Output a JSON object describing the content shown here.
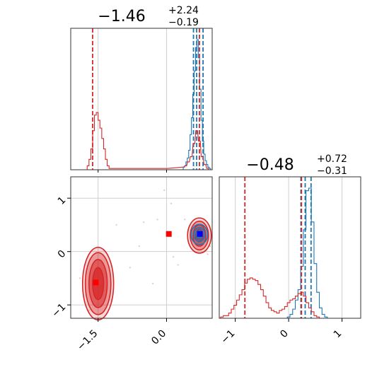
{
  "chart_data": [
    {
      "panel": "top-left",
      "type": "histogram",
      "title": {
        "main": "−1.46",
        "sup": "+2.24",
        "sub": "−0.19"
      },
      "xlim": [
        -2.1,
        1.0
      ],
      "grid": true,
      "series": [
        {
          "color": "#1f77b4",
          "bins": [
            [
              0.35,
              0.0
            ],
            [
              0.38,
              0.02
            ],
            [
              0.41,
              0.03
            ],
            [
              0.44,
              0.06
            ],
            [
              0.47,
              0.09
            ],
            [
              0.5,
              0.15
            ],
            [
              0.53,
              0.27
            ],
            [
              0.56,
              0.4
            ],
            [
              0.59,
              0.58
            ],
            [
              0.62,
              0.76
            ],
            [
              0.65,
              0.94
            ],
            [
              0.68,
              1.0
            ],
            [
              0.71,
              0.86
            ],
            [
              0.74,
              0.62
            ],
            [
              0.77,
              0.38
            ],
            [
              0.8,
              0.22
            ],
            [
              0.83,
              0.12
            ],
            [
              0.86,
              0.07
            ],
            [
              0.89,
              0.04
            ],
            [
              0.92,
              0.02
            ],
            [
              0.95,
              0.01
            ]
          ],
          "quantiles": [
            0.59,
            0.66,
            0.8
          ]
        },
        {
          "color": "#d62728",
          "bins": [
            [
              -1.72,
              0.03
            ],
            [
              -1.68,
              0.08
            ],
            [
              -1.64,
              0.16
            ],
            [
              -1.6,
              0.3
            ],
            [
              -1.56,
              0.42
            ],
            [
              -1.52,
              0.44
            ],
            [
              -1.48,
              0.38
            ],
            [
              -1.44,
              0.32
            ],
            [
              -1.4,
              0.24
            ],
            [
              -1.36,
              0.16
            ],
            [
              -1.32,
              0.08
            ],
            [
              -1.28,
              0.03
            ],
            [
              -1.24,
              0.01
            ],
            [
              -0.04,
              0.01
            ],
            [
              0.0,
              0.01
            ],
            [
              0.36,
              0.02
            ],
            [
              0.42,
              0.03
            ],
            [
              0.48,
              0.06
            ],
            [
              0.54,
              0.1
            ],
            [
              0.6,
              0.2
            ],
            [
              0.66,
              0.3
            ],
            [
              0.72,
              0.22
            ],
            [
              0.78,
              0.1
            ],
            [
              0.84,
              0.04
            ],
            [
              0.9,
              0.01
            ]
          ],
          "quantiles": [
            -1.62,
            0.72
          ]
        }
      ]
    },
    {
      "panel": "bottom-left",
      "type": "contour-scatter",
      "xlim": [
        -2.1,
        1.0
      ],
      "ylim": [
        -1.25,
        1.4
      ],
      "x_ticks": [
        -1.5,
        0.0
      ],
      "x_tick_labels": [
        "−1.5",
        "0.0"
      ],
      "y_ticks": [
        -1,
        0,
        1
      ],
      "y_tick_labels": [
        "−1",
        "0",
        "1"
      ],
      "grid": true,
      "markers": [
        {
          "color": "#ff0000",
          "x": 0.05,
          "y": 0.33
        },
        {
          "color": "#0000ff",
          "x": 0.73,
          "y": 0.33
        },
        {
          "color": "#ff0000",
          "x": -1.55,
          "y": -0.58
        }
      ],
      "contours": [
        {
          "color": "#d62728",
          "cx": -1.5,
          "cy": -0.6,
          "rx": [
            0.12,
            0.2,
            0.28,
            0.34
          ],
          "ry": [
            0.3,
            0.45,
            0.58,
            0.68
          ]
        },
        {
          "color": "#d62728",
          "cx": 0.72,
          "cy": 0.3,
          "rx": [
            0.08,
            0.14,
            0.2,
            0.26
          ],
          "ry": [
            0.12,
            0.2,
            0.27,
            0.33
          ]
        },
        {
          "color": "#1f77b4",
          "cx": 0.72,
          "cy": 0.32,
          "rx": [
            0.06,
            0.12,
            0.18
          ],
          "ry": [
            0.07,
            0.13,
            0.19
          ]
        }
      ]
    },
    {
      "panel": "bottom-right",
      "type": "histogram",
      "title": {
        "main": "−0.48",
        "sup": "+0.72",
        "sub": "−0.31"
      },
      "xlim": [
        -1.3,
        1.35
      ],
      "x_ticks": [
        -1,
        0,
        1
      ],
      "x_tick_labels": [
        "−1",
        "0",
        "1"
      ],
      "grid": true,
      "series": [
        {
          "color": "#1f77b4",
          "bins": [
            [
              -0.05,
              0.0
            ],
            [
              0.0,
              0.01
            ],
            [
              0.05,
              0.03
            ],
            [
              0.1,
              0.07
            ],
            [
              0.15,
              0.14
            ],
            [
              0.2,
              0.22
            ],
            [
              0.25,
              0.4
            ],
            [
              0.3,
              0.68
            ],
            [
              0.35,
              0.98
            ],
            [
              0.4,
              1.0
            ],
            [
              0.45,
              0.74
            ],
            [
              0.5,
              0.42
            ],
            [
              0.55,
              0.2
            ],
            [
              0.6,
              0.08
            ],
            [
              0.65,
              0.03
            ],
            [
              0.7,
              0.01
            ]
          ],
          "quantiles": [
            0.23,
            0.31,
            0.42
          ]
        },
        {
          "color": "#d62728",
          "bins": [
            [
              -1.25,
              0.01
            ],
            [
              -1.2,
              0.02
            ],
            [
              -1.15,
              0.02
            ],
            [
              -1.1,
              0.04
            ],
            [
              -1.05,
              0.07
            ],
            [
              -1.0,
              0.1
            ],
            [
              -0.95,
              0.14
            ],
            [
              -0.9,
              0.18
            ],
            [
              -0.85,
              0.22
            ],
            [
              -0.8,
              0.27
            ],
            [
              -0.75,
              0.3
            ],
            [
              -0.7,
              0.31
            ],
            [
              -0.65,
              0.3
            ],
            [
              -0.6,
              0.29
            ],
            [
              -0.55,
              0.26
            ],
            [
              -0.5,
              0.22
            ],
            [
              -0.45,
              0.17
            ],
            [
              -0.4,
              0.12
            ],
            [
              -0.35,
              0.08
            ],
            [
              -0.3,
              0.06
            ],
            [
              -0.25,
              0.05
            ],
            [
              -0.2,
              0.04
            ],
            [
              -0.15,
              0.06
            ],
            [
              -0.1,
              0.07
            ],
            [
              -0.05,
              0.09
            ],
            [
              0.0,
              0.12
            ],
            [
              0.05,
              0.14
            ],
            [
              0.1,
              0.15
            ],
            [
              0.15,
              0.17
            ],
            [
              0.2,
              0.19
            ],
            [
              0.25,
              0.2
            ],
            [
              0.3,
              0.17
            ],
            [
              0.35,
              0.12
            ],
            [
              0.4,
              0.08
            ],
            [
              0.45,
              0.05
            ],
            [
              0.5,
              0.02
            ],
            [
              0.55,
              0.01
            ]
          ],
          "quantiles": [
            -0.82,
            0.24
          ]
        }
      ]
    }
  ]
}
